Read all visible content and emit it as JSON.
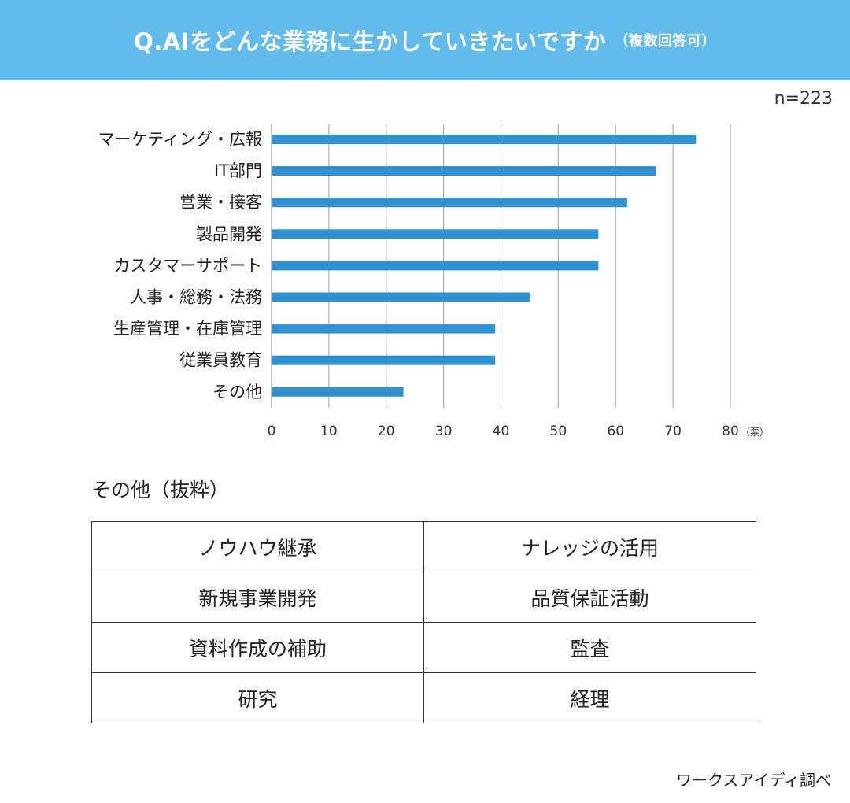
{
  "header": {
    "title": "Q.AIをどんな業務に生かしていきたいですか",
    "note": "（複数回答可）",
    "bg_color": "#62bbea"
  },
  "sample_size": "n=223",
  "chart_data": {
    "type": "bar",
    "orientation": "horizontal",
    "categories": [
      "マーケティング・広報",
      "IT部門",
      "営業・接客",
      "製品開発",
      "カスタマーサポート",
      "人事・総務・法務",
      "生産管理・在庫管理",
      "従業員教育",
      "その他"
    ],
    "values": [
      74,
      67,
      62,
      57,
      57,
      45,
      39,
      39,
      23
    ],
    "xlim": [
      0,
      80
    ],
    "xticks": [
      0,
      10,
      20,
      30,
      40,
      50,
      60,
      70,
      80
    ],
    "unit_label": "（票）",
    "grid": true,
    "bar_color": "#3192d2"
  },
  "others": {
    "title": "その他（抜粋）",
    "rows": [
      [
        "ノウハウ継承",
        "ナレッジの活用"
      ],
      [
        "新規事業開発",
        "品質保証活動"
      ],
      [
        "資料作成の補助",
        "監査"
      ],
      [
        "研究",
        "経理"
      ]
    ]
  },
  "credit": "ワークスアイディ調べ"
}
